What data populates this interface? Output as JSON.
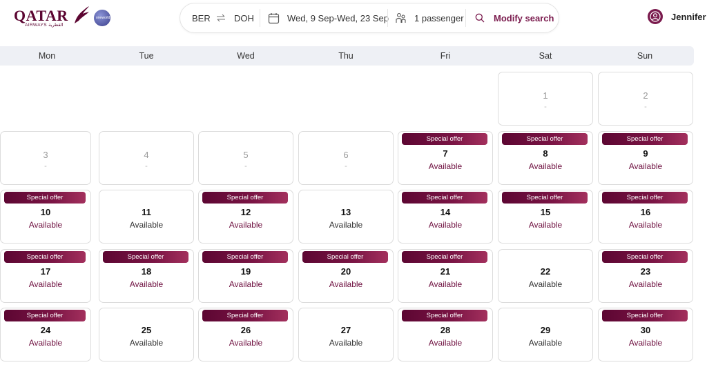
{
  "brand": {
    "logo_text": "QATAR",
    "logo_sub": "AIRWAYS القطرية",
    "alliance_badge": "oneworld"
  },
  "search": {
    "origin": "BER",
    "swap_icon": "swap-arrows-icon",
    "destination": "DOH",
    "dates": "Wed, 9 Sep-Wed, 23 Sep",
    "passengers": "1 passenger",
    "modify_label": "Modify search"
  },
  "user": {
    "name": "Jennifer"
  },
  "colors": {
    "brand": "#5c0632",
    "accent": "#7a1a4d",
    "weekbar": "#eef0f5"
  },
  "weekdays": [
    "Mon",
    "Tue",
    "Wed",
    "Thu",
    "Fri",
    "Sat",
    "Sun"
  ],
  "offer_label": "Special offer",
  "days": [
    {
      "day": "1",
      "status": "-",
      "special": false,
      "active": false
    },
    {
      "day": "2",
      "status": "-",
      "special": false,
      "active": false
    },
    {
      "day": "3",
      "status": "-",
      "special": false,
      "active": false
    },
    {
      "day": "4",
      "status": "-",
      "special": false,
      "active": false
    },
    {
      "day": "5",
      "status": "-",
      "special": false,
      "active": false
    },
    {
      "day": "6",
      "status": "-",
      "special": false,
      "active": false
    },
    {
      "day": "7",
      "status": "Available",
      "special": true,
      "active": true
    },
    {
      "day": "8",
      "status": "Available",
      "special": true,
      "active": true
    },
    {
      "day": "9",
      "status": "Available",
      "special": true,
      "active": true
    },
    {
      "day": "10",
      "status": "Available",
      "special": true,
      "active": true
    },
    {
      "day": "11",
      "status": "Available",
      "special": false,
      "active": true
    },
    {
      "day": "12",
      "status": "Available",
      "special": true,
      "active": true
    },
    {
      "day": "13",
      "status": "Available",
      "special": false,
      "active": true
    },
    {
      "day": "14",
      "status": "Available",
      "special": true,
      "active": true
    },
    {
      "day": "15",
      "status": "Available",
      "special": true,
      "active": true
    },
    {
      "day": "16",
      "status": "Available",
      "special": true,
      "active": true
    },
    {
      "day": "17",
      "status": "Available",
      "special": true,
      "active": true
    },
    {
      "day": "18",
      "status": "Available",
      "special": true,
      "active": true
    },
    {
      "day": "19",
      "status": "Available",
      "special": true,
      "active": true
    },
    {
      "day": "20",
      "status": "Available",
      "special": true,
      "active": true
    },
    {
      "day": "21",
      "status": "Available",
      "special": true,
      "active": true
    },
    {
      "day": "22",
      "status": "Available",
      "special": false,
      "active": true
    },
    {
      "day": "23",
      "status": "Available",
      "special": true,
      "active": true
    },
    {
      "day": "24",
      "status": "Available",
      "special": true,
      "active": true
    },
    {
      "day": "25",
      "status": "Available",
      "special": false,
      "active": true
    },
    {
      "day": "26",
      "status": "Available",
      "special": true,
      "active": true
    },
    {
      "day": "27",
      "status": "Available",
      "special": false,
      "active": true
    },
    {
      "day": "28",
      "status": "Available",
      "special": true,
      "active": true
    },
    {
      "day": "29",
      "status": "Available",
      "special": false,
      "active": true
    },
    {
      "day": "30",
      "status": "Available",
      "special": true,
      "active": true
    }
  ]
}
